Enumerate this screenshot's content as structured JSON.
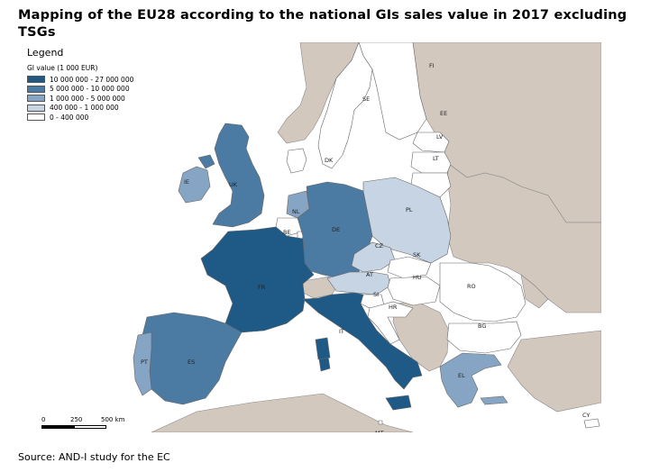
{
  "title": "Mapping of the EU28 according to the national GIs sales value in 2017 excluding TSGs",
  "legend": {
    "title": "Legend",
    "subtitle": "GI value (1 000 EUR)",
    "classes": [
      {
        "label": "10 000 000 - 27 000 000",
        "color": "#1f5a87"
      },
      {
        "label": "5 000 000 - 10 000 000",
        "color": "#4b7aa3"
      },
      {
        "label": "1 000 000 - 5 000 000",
        "color": "#86a5c4"
      },
      {
        "label": "400 000 - 1 000 000",
        "color": "#c6d4e4"
      },
      {
        "label": "0 - 400 000",
        "color": "#ffffff"
      }
    ]
  },
  "scale_bar": {
    "ticks": [
      "0",
      "250",
      "500 km"
    ]
  },
  "countries": {
    "FI": "FI",
    "SE": "SE",
    "EE": "EE",
    "LV": "LV",
    "LT": "LT",
    "DK": "DK",
    "IE": "IE",
    "UK": "UK",
    "NL": "NL",
    "BE": "BE",
    "DE": "DE",
    "PL": "PL",
    "CZ": "CZ",
    "SK": "SK",
    "AT": "AT",
    "HU": "HU",
    "RO": "RO",
    "FR": "FR",
    "SI": "SI",
    "HR": "HR",
    "BG": "BG",
    "IT": "IT",
    "ES": "ES",
    "PT": "PT",
    "EL": "EL",
    "MT": "MT",
    "CY": "CY"
  },
  "colors": {
    "non_eu": "#d3c8bd",
    "border": "#666666",
    "sea": "#ffffff"
  },
  "source": "Source: AND-I study for the EC"
}
